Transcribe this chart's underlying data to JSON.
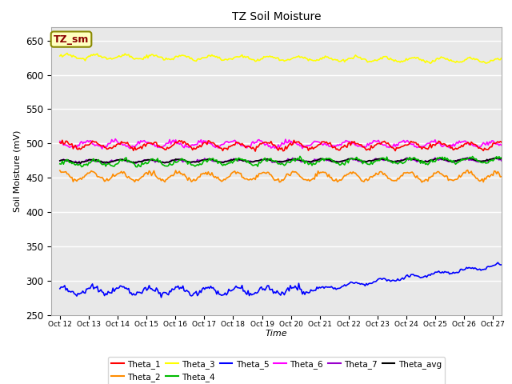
{
  "title": "TZ Soil Moisture",
  "xlabel": "Time",
  "ylabel": "Soil Moisture (mV)",
  "ylim": [
    250,
    670
  ],
  "yticks": [
    250,
    300,
    350,
    400,
    450,
    500,
    550,
    600,
    650
  ],
  "bg_color": "#e8e8e8",
  "legend_label": "TZ_sm",
  "series_order": [
    "Theta_3",
    "Theta_2",
    "Theta_7",
    "Theta_avg",
    "Theta_4",
    "Theta_6",
    "Theta_1",
    "Theta_5"
  ],
  "series": {
    "Theta_1": {
      "color": "#ff0000",
      "base": 497,
      "amp": 5,
      "freq": 1.0,
      "phase": 0.5,
      "noise": 1.5,
      "trend": 0.0
    },
    "Theta_2": {
      "color": "#ff8c00",
      "base": 452,
      "amp": 6,
      "freq": 1.0,
      "phase": 1.0,
      "noise": 1.5,
      "trend": 0.0
    },
    "Theta_3": {
      "color": "#ffff00",
      "base": 627,
      "amp": 3,
      "freq": 1.0,
      "phase": 0.0,
      "noise": 1.0,
      "trend": -0.4
    },
    "Theta_4": {
      "color": "#00bb00",
      "base": 471,
      "amp": 4,
      "freq": 1.0,
      "phase": 0.2,
      "noise": 1.5,
      "trend": 0.3
    },
    "Theta_5": {
      "color": "#0000ff",
      "base": 285,
      "amp": 5,
      "freq": 1.0,
      "phase": 0.8,
      "noise": 2.0,
      "trend": 0.0
    },
    "Theta_6": {
      "color": "#ff00ff",
      "base": 499,
      "amp": 4,
      "freq": 1.0,
      "phase": 2.0,
      "noise": 1.5,
      "trend": 0.0
    },
    "Theta_7": {
      "color": "#9900cc",
      "base": 474,
      "amp": 2,
      "freq": 1.0,
      "phase": 1.2,
      "noise": 0.8,
      "trend": 0.1
    },
    "Theta_avg": {
      "color": "#000000",
      "base": 474,
      "amp": 2,
      "freq": 1.0,
      "phase": 0.8,
      "noise": 0.5,
      "trend": 0.15
    }
  },
  "n_days": 16,
  "legend_entries": [
    {
      "label": "Theta_1",
      "color": "#ff0000"
    },
    {
      "label": "Theta_2",
      "color": "#ff8c00"
    },
    {
      "label": "Theta_3",
      "color": "#ffff00"
    },
    {
      "label": "Theta_4",
      "color": "#00bb00"
    },
    {
      "label": "Theta_5",
      "color": "#0000ff"
    },
    {
      "label": "Theta_6",
      "color": "#ff00ff"
    },
    {
      "label": "Theta_7",
      "color": "#9900cc"
    },
    {
      "label": "Theta_avg",
      "color": "#000000"
    }
  ]
}
